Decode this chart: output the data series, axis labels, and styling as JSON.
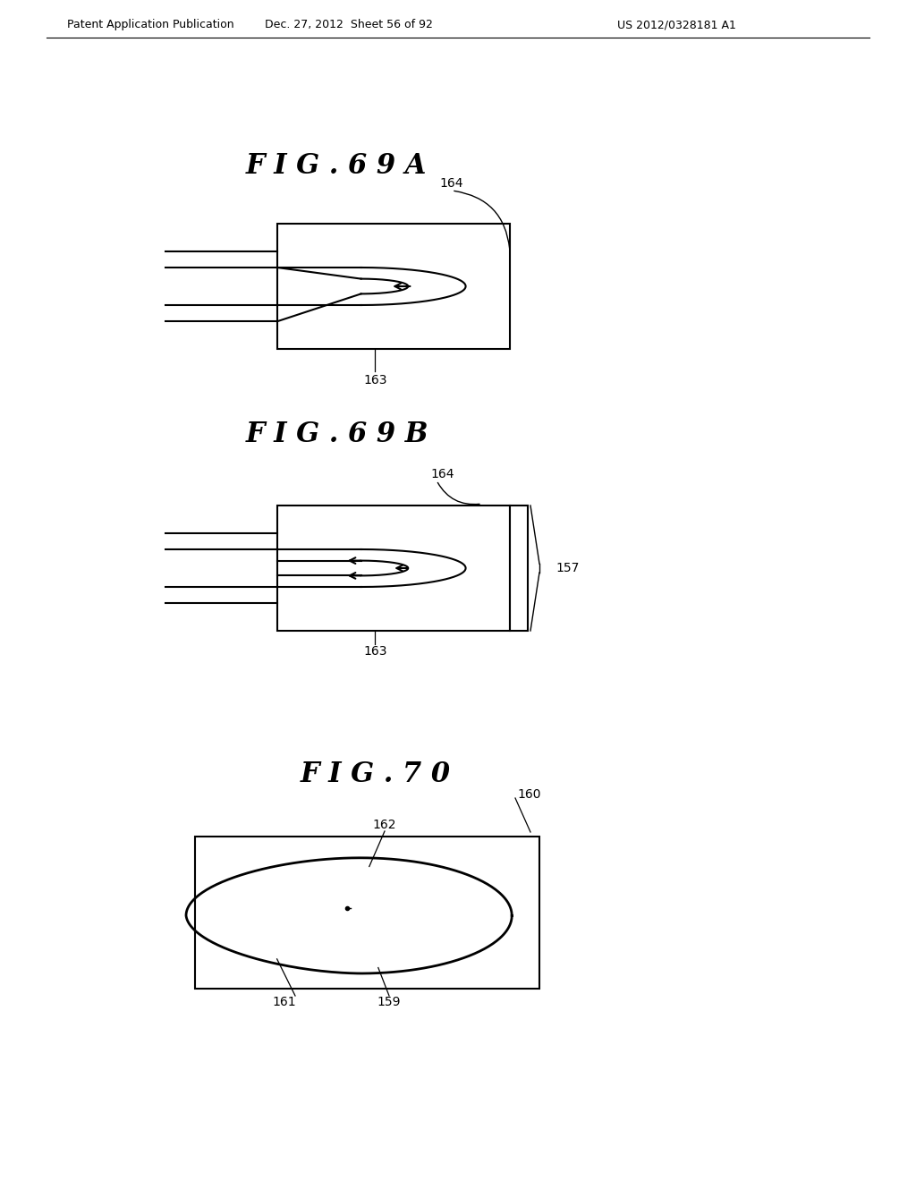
{
  "bg_color": "#ffffff",
  "header_left": "Patent Application Publication",
  "header_mid": "Dec. 27, 2012  Sheet 56 of 92",
  "header_right": "US 2012/0328181 A1",
  "fig69a_title": "F I G . 6 9 A",
  "fig69b_title": "F I G . 6 9 B",
  "fig70_title": "F I G . 7 0",
  "label_163_a": "163",
  "label_164_a": "164",
  "label_163_b": "163",
  "label_164_b": "164",
  "label_157": "157",
  "label_159": "159",
  "label_160": "160",
  "label_161": "161",
  "label_162": "162"
}
